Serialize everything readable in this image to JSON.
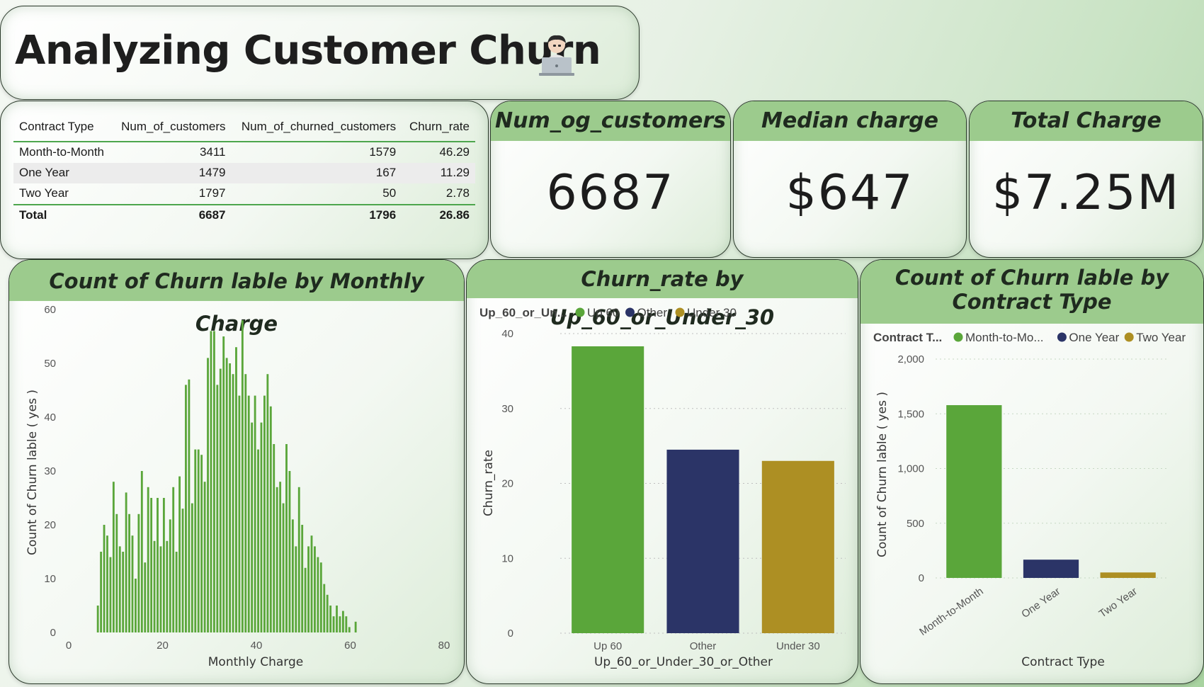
{
  "title": "Analyzing Customer Churn",
  "table": {
    "headers": [
      "Contract Type",
      "Num_of_customers",
      "Num_of_churned_customers",
      "Churn_rate"
    ],
    "rows": [
      [
        "Month-to-Month",
        "3411",
        "1579",
        "46.29"
      ],
      [
        "One Year",
        "1479",
        "167",
        "11.29"
      ],
      [
        "Two Year",
        "1797",
        "50",
        "2.78"
      ]
    ],
    "total": [
      "Total",
      "6687",
      "1796",
      "26.86"
    ]
  },
  "kpis": {
    "customers": {
      "label": "Num_og_customers",
      "value": "6687"
    },
    "median": {
      "label": "Median charge",
      "value": "$647"
    },
    "total": {
      "label": "Total Charge",
      "value": "$7.25M"
    }
  },
  "colors": {
    "green": "#5aa63a",
    "navy": "#2b3467",
    "gold": "#ad8f23"
  },
  "chart_data": [
    {
      "type": "bar",
      "title": "Count of Churn lable by Monthly Charge",
      "xlabel": "Monthly Charge",
      "ylabel": "Count of Churn lable ( yes )",
      "xlim": [
        0,
        80
      ],
      "ylim": [
        0,
        60
      ],
      "xticks": [
        "0",
        "20",
        "40",
        "60",
        "80"
      ],
      "yticks": [
        "0",
        "10",
        "20",
        "30",
        "40",
        "50",
        "60"
      ],
      "x_start": 6,
      "x_step": 0.67,
      "values": [
        5,
        15,
        20,
        18,
        14,
        28,
        22,
        16,
        15,
        26,
        22,
        18,
        10,
        22,
        30,
        13,
        27,
        25,
        17,
        25,
        16,
        25,
        17,
        21,
        27,
        15,
        29,
        23,
        46,
        47,
        24,
        34,
        34,
        33,
        28,
        51,
        56,
        56,
        46,
        49,
        55,
        51,
        50,
        48,
        53,
        44,
        58,
        48,
        44,
        39,
        44,
        34,
        39,
        44,
        48,
        42,
        35,
        27,
        28,
        24,
        35,
        30,
        21,
        16,
        27,
        20,
        12,
        16,
        18,
        16,
        14,
        13,
        9,
        7,
        5,
        3,
        5,
        3,
        4,
        3,
        1,
        0,
        2
      ]
    },
    {
      "type": "bar",
      "title": "Churn_rate by Up_60_or_Under_30",
      "xlabel": "Up_60_or_Under_30_or_Other",
      "ylabel": "Churn_rate",
      "legend_title": "Up_60_or_Un...",
      "categories": [
        "Up 60",
        "Other",
        "Under 30"
      ],
      "values": [
        38.3,
        24.5,
        23
      ],
      "ylim": [
        0,
        40
      ],
      "yticks": [
        "0",
        "10",
        "20",
        "30",
        "40"
      ]
    },
    {
      "type": "bar",
      "title_lines": [
        "Count of Churn lable by",
        "Contract Type"
      ],
      "xlabel": "Contract Type",
      "ylabel": "Count of Churn lable ( yes )",
      "legend_title": "Contract T...",
      "legend_items": [
        "Month-to-Mo...",
        "One Year",
        "Two Year"
      ],
      "categories": [
        "Month-to-Month",
        "One Year",
        "Two Year"
      ],
      "values": [
        1579,
        167,
        50
      ],
      "ylim": [
        0,
        2000
      ],
      "yticks": [
        "0",
        "500",
        "1,000",
        "1,500",
        "2,000"
      ]
    }
  ]
}
